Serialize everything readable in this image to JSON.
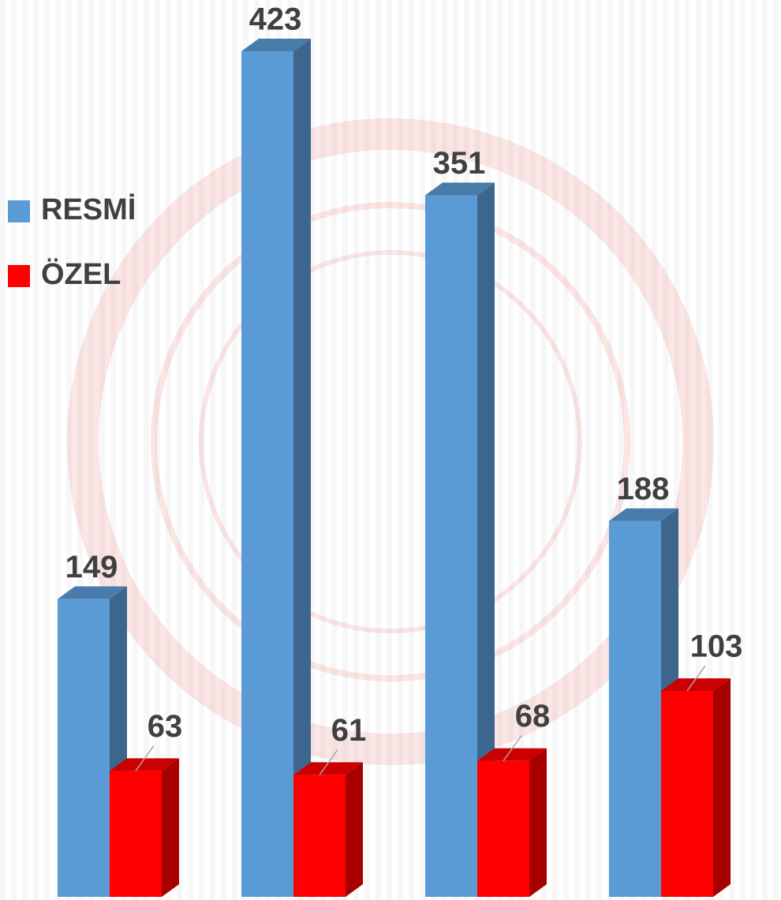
{
  "chart_data": {
    "type": "bar3d",
    "categories": [
      null,
      null,
      null,
      null
    ],
    "legend": "left",
    "series": [
      {
        "name": "RESMİ",
        "color": "#5b9bd5",
        "values": [
          149,
          423,
          351,
          188
        ]
      },
      {
        "name": "ÖZEL",
        "color": "#ff0000",
        "values": [
          63,
          61,
          68,
          103
        ]
      }
    ]
  }
}
